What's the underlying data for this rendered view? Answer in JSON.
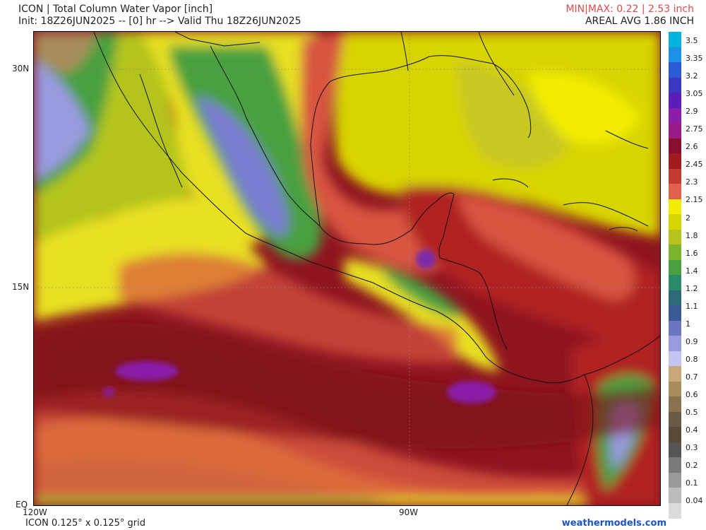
{
  "header": {
    "title": "ICON | Total Column Water Vapor [inch]",
    "init": "Init: 18Z26JUN2025 -- [0] hr --> Valid Thu 18Z26JUN2025",
    "minmax": "MIN|MAX: 0.22 | 2.53 inch",
    "areal_avg": "AREAL AVG 1.86 INCH"
  },
  "axes": {
    "lat_30": "30N",
    "lat_15": "15N",
    "lat_eq": "EQ",
    "lon_120": "120W",
    "lon_90": "90W"
  },
  "colorbar": {
    "labels": [
      "3.5",
      "3.35",
      "3.2",
      "3.05",
      "2.9",
      "2.75",
      "2.6",
      "2.45",
      "2.3",
      "2.15",
      "2",
      "1.8",
      "1.6",
      "1.4",
      "1.2",
      "1.1",
      "1",
      "0.9",
      "0.8",
      "0.7",
      "0.6",
      "0.5",
      "0.4",
      "0.3",
      "0.2",
      "0.1",
      "0.04"
    ],
    "colors": [
      "#00b4e0",
      "#1e8ee6",
      "#2a5ad6",
      "#3a38c2",
      "#5a1eb8",
      "#8a1ea8",
      "#9a1a88",
      "#8a0e2e",
      "#a01a1e",
      "#c43a30",
      "#e0604c",
      "#f2ec00",
      "#d8d400",
      "#b4c41c",
      "#7cb42c",
      "#4aa040",
      "#2a8a6a",
      "#2c6a7a",
      "#3a5a96",
      "#6a74c0",
      "#9a9ae0",
      "#c4c4f0",
      "#c8a878",
      "#a88c5a",
      "#8a7250",
      "#6a5a44",
      "#5a4a3a",
      "#555555",
      "#7a7a7a",
      "#9a9a9a",
      "#bcbcbc",
      "#dcdcdc"
    ]
  },
  "footer": {
    "grid": "ICON 0.125° x 0.125° grid",
    "brand": "weathermodels.com"
  }
}
